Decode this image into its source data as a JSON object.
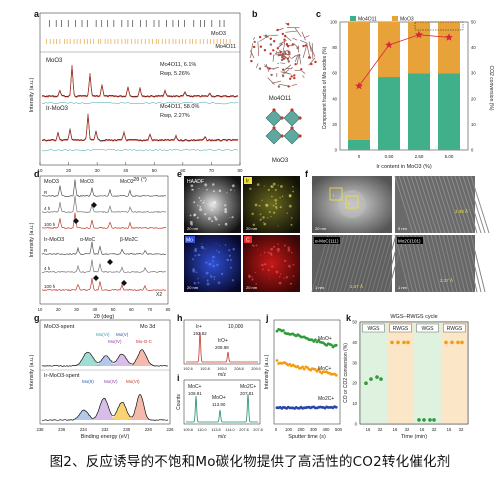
{
  "caption": "图2、反应诱导的不饱和Mo碳化物提供了高活性的CO2转化催化剂",
  "panels": {
    "a": {
      "label": "a",
      "legend_top": "MoO3",
      "legend_bottom": "Mo4O11",
      "trace1_name": "MoO3",
      "trace1_stat1": "Mo4O11, 6.1%",
      "trace1_stat2": "Rwp, 5.26%",
      "trace2_name": "Ir-MoO3",
      "trace2_stat1": "Mo4O11, 58.0%",
      "trace2_stat2": "Rwp, 2.27%",
      "ylabel": "Intensity (a.u.)",
      "xlabel": "2θ (°)",
      "xticks": [
        "10",
        "20",
        "30",
        "40",
        "50",
        "60",
        "70",
        "80"
      ]
    },
    "b": {
      "label": "b",
      "top_struct": "Mo4O11",
      "bottom_struct": "MoO3"
    },
    "c": {
      "label": "c",
      "legend1": "Mo4O11",
      "legend2": "MoO3",
      "ylabel_left": "Component fraction of Mo oxides (%)",
      "ylabel_right": "CO2 conversion (%)",
      "xlabel": "Ir content in MoO3 (%)",
      "xticks": [
        "0",
        "0.50",
        "2.50",
        "5.00"
      ],
      "yticks_left": [
        "0",
        "20",
        "40",
        "60",
        "80",
        "100"
      ],
      "yticks_right": [
        "0",
        "10",
        "20",
        "30",
        "40",
        "50"
      ]
    },
    "d": {
      "label": "d",
      "legend1": "MoO3",
      "legend2": "MoO2",
      "legend3": "α-MoC",
      "legend4": "β-Mo2C",
      "group1": "MoO3",
      "group2": "Ir-MoO3",
      "rows": [
        "R",
        "4 h",
        "100 h",
        "R",
        "4 h",
        "100 h"
      ],
      "ylabel": "Intensity (a.u.)",
      "xlabel": "2θ (deg)",
      "xticks": [
        "10",
        "20",
        "30",
        "40",
        "50",
        "60",
        "70",
        "80"
      ],
      "mark": "X2"
    },
    "e": {
      "label": "e",
      "tiles": [
        "HAADF",
        "Ir",
        "Mo",
        "C"
      ],
      "scale": "20 nm"
    },
    "f": {
      "label": "f",
      "region1": "i",
      "region2": "ii",
      "scale_left": "20 nm",
      "scale_right": "5 nm",
      "d_spacing_1": "2.39 Å",
      "label_moc": "α-MoC(111)",
      "label_mo2c": "Mo2C(101)",
      "d_spacing_2": "2.47 Å",
      "d_spacing_3": "2.37 Å",
      "scale_small": "1 nm"
    },
    "g": {
      "label": "g",
      "title1": "MoO3-spent",
      "title1_right": "Mo 3d",
      "peaks": [
        "Mo(VI)",
        "Mo(V)",
        "Mo(IV)",
        "Mo-O-C"
      ],
      "title2": "Ir-MoO3-spent",
      "peaks2": [
        "Mo(II)",
        "Mo(IV)",
        "Mo(VI)"
      ],
      "ylabel": "Intensity (a.u.)",
      "xlabel": "Binding energy (eV)",
      "xticks": [
        "238",
        "236",
        "234",
        "232",
        "230",
        "228",
        "226"
      ]
    },
    "h": {
      "label": "h",
      "ion1": "Ir+",
      "ion1_mass": "192.82",
      "ion2": "IrO+",
      "ion2_mass": "208.98",
      "scale": "10,000",
      "xlabel": "m/z",
      "xticks": [
        "192.6",
        "192.8",
        "193.0",
        "208.8",
        "209.0"
      ]
    },
    "i": {
      "label": "i",
      "ion1": "MoC+",
      "ion1_mass": "109.91",
      "ion2": "MoO+",
      "ion2_mass": "113.90",
      "ion3": "Mo2C+",
      "ion3_mass": "207.81",
      "ylabel": "Counts",
      "xlabel": "m/z",
      "xticks": [
        "109.8",
        "110.0",
        "113.8",
        "114.0",
        "207.6",
        "207.8"
      ]
    },
    "j": {
      "label": "j",
      "trace1": "MoO+",
      "trace2": "MoC+",
      "trace3": "Mo2C+",
      "ylabel": "Intensity (a.u.)",
      "xlabel": "Sputter time (s)",
      "xticks": [
        "0",
        "100",
        "200",
        "300",
        "400",
        "500"
      ]
    },
    "k": {
      "label": "k",
      "title": "WGS–RWGS cycle",
      "stages": [
        "WGS",
        "RWGS",
        "WGS",
        "RWGS"
      ],
      "ylabel": "CO or CO2 conversion (%)",
      "xlabel": "Time (min)",
      "xticks": [
        "16",
        "32",
        "16",
        "32",
        "16",
        "32",
        "16",
        "32"
      ],
      "yticks": [
        "0",
        "10",
        "20",
        "30",
        "40",
        "50"
      ]
    }
  },
  "colors": {
    "mo4o11": "#e8a23a",
    "moo3": "#3fb08a",
    "conversion": "#d7263d",
    "xrd_fit": "#c0392b",
    "green": "#2e9a3a",
    "orange": "#f39c12",
    "blue": "#2945a8"
  }
}
